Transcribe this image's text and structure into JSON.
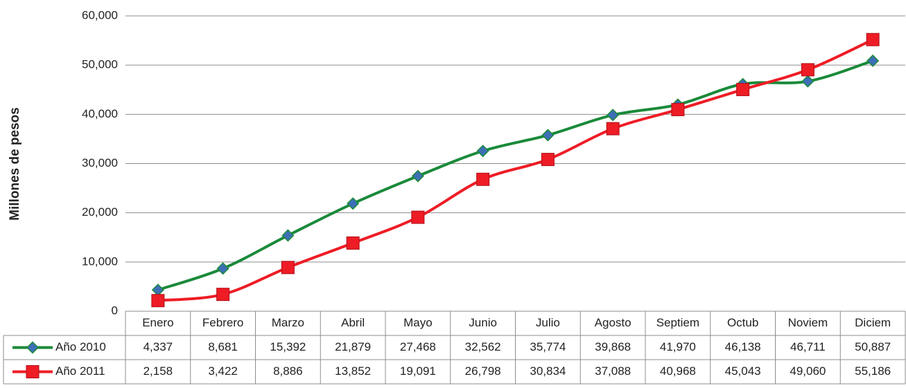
{
  "chart_data": {
    "type": "line",
    "y_label": "Millones de pesos",
    "categories": [
      "Enero",
      "Febrero",
      "Marzo",
      "Abril",
      "Mayo",
      "Junio",
      "Julio",
      "Agosto",
      "Septiem",
      "Octub",
      "Noviem",
      "Diciem"
    ],
    "series": [
      {
        "name": "Año 2010",
        "color": "#1a8a3a",
        "marker_color": "#3d6fb6",
        "values": [
          4337,
          8681,
          15392,
          21879,
          27468,
          32562,
          35774,
          39868,
          41970,
          46138,
          46711,
          50887
        ],
        "value_labels": [
          "4,337",
          "8,681",
          "15,392",
          "21,879",
          "27,468",
          "32,562",
          "35,774",
          "39,868",
          "41,970",
          "46,138",
          "46,711",
          "50,887"
        ]
      },
      {
        "name": "Año 2011",
        "color": "#ee1c25",
        "marker_color": "#ee1c25",
        "values": [
          2158,
          3422,
          8886,
          13852,
          19091,
          26798,
          30834,
          37088,
          40968,
          45043,
          49060,
          55186
        ],
        "value_labels": [
          "2,158",
          "3,422",
          "8,886",
          "13,852",
          "19,091",
          "26,798",
          "30,834",
          "37,088",
          "40,968",
          "45,043",
          "49,060",
          "55,186"
        ]
      }
    ],
    "ylim": [
      0,
      60000
    ],
    "yticks": [
      0,
      {
        "value": 10000,
        "label": "10,000"
      },
      {
        "value": 20000,
        "label": "20,000"
      },
      {
        "value": 30000,
        "label": "30,000"
      },
      {
        "value": 40000,
        "label": "40,000"
      },
      {
        "value": 50000,
        "label": "50,000"
      },
      {
        "value": 60000,
        "label": "60,000"
      }
    ],
    "grid": true
  }
}
